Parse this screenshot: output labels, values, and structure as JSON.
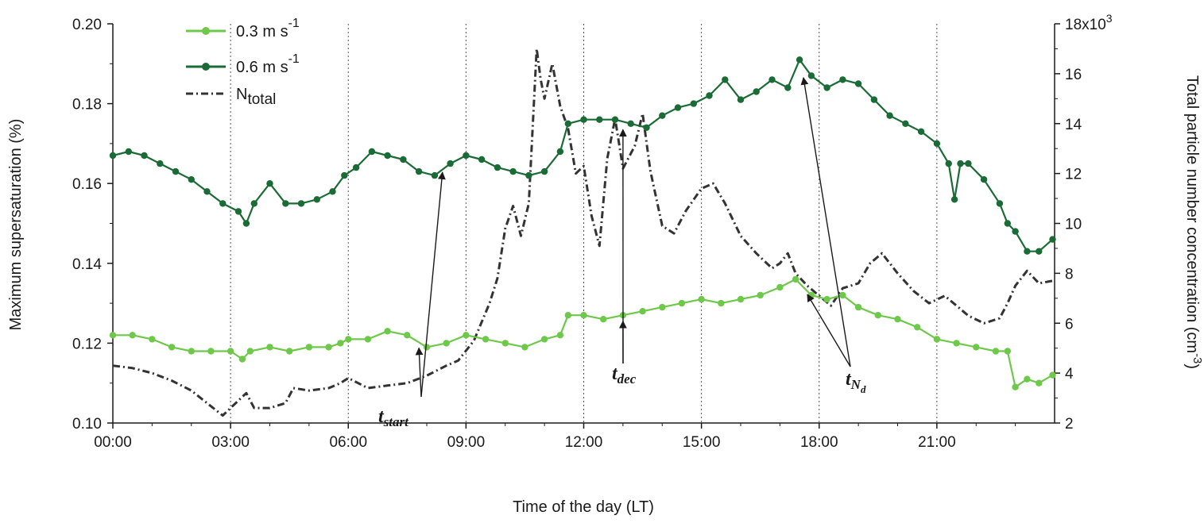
{
  "chart_data": {
    "type": "line",
    "title": "",
    "xlabel": "Time of the day (LT)",
    "ylabel_left": "Maximum supersaturation (%)",
    "ylabel_right": "Total particle number concentration (cm",
    "ylabel_right_sup": "-3",
    "ylabel_right_close": ")",
    "x_unit": "hour of day (LT)",
    "xlim": [
      0,
      24
    ],
    "ylim_left": [
      0.1,
      0.2
    ],
    "ylim_right": [
      2000,
      18000
    ],
    "x_ticks": [
      0,
      3,
      6,
      9,
      12,
      15,
      18,
      21
    ],
    "x_tick_labels": [
      "00:00",
      "03:00",
      "06:00",
      "09:00",
      "12:00",
      "15:00",
      "18:00",
      "21:00"
    ],
    "y_left_ticks": [
      0.1,
      0.12,
      0.14,
      0.16,
      0.18,
      0.2
    ],
    "y_left_tick_labels": [
      "0.10",
      "0.12",
      "0.14",
      "0.16",
      "0.18",
      "0.20"
    ],
    "y_right_ticks": [
      2000,
      4000,
      6000,
      8000,
      10000,
      12000,
      14000,
      16000,
      18000
    ],
    "y_right_tick_labels": [
      "2",
      "4",
      "6",
      "8",
      "10",
      "12",
      "14",
      "16",
      "18x10"
    ],
    "y_right_top_sup": "3",
    "grid": "vertical dotted lines at each 3-hour tick",
    "legend_placement": "top-left",
    "series": [
      {
        "name": "0.3 m s",
        "name_sup": "-1",
        "axis": "left",
        "color": "#6ec84a",
        "style": "line with circle markers",
        "x": [
          0.0,
          0.5,
          1.0,
          1.5,
          2.0,
          2.5,
          3.0,
          3.3,
          3.5,
          4.0,
          4.5,
          5.0,
          5.5,
          5.8,
          6.0,
          6.5,
          7.0,
          7.5,
          8.0,
          8.5,
          9.0,
          9.5,
          10.0,
          10.5,
          11.0,
          11.4,
          11.6,
          12.0,
          12.5,
          13.0,
          13.5,
          14.0,
          14.5,
          15.0,
          15.5,
          16.0,
          16.5,
          17.0,
          17.4,
          17.8,
          18.2,
          18.6,
          19.0,
          19.5,
          20.0,
          20.5,
          21.0,
          21.5,
          22.0,
          22.5,
          22.8,
          23.0,
          23.3,
          23.6,
          23.95
        ],
        "y": [
          0.122,
          0.122,
          0.121,
          0.119,
          0.118,
          0.118,
          0.118,
          0.116,
          0.118,
          0.119,
          0.118,
          0.119,
          0.119,
          0.12,
          0.121,
          0.121,
          0.123,
          0.122,
          0.119,
          0.12,
          0.122,
          0.121,
          0.12,
          0.119,
          0.121,
          0.122,
          0.127,
          0.127,
          0.126,
          0.127,
          0.128,
          0.129,
          0.13,
          0.131,
          0.13,
          0.131,
          0.132,
          0.134,
          0.136,
          0.132,
          0.131,
          0.132,
          0.129,
          0.127,
          0.126,
          0.124,
          0.121,
          0.12,
          0.119,
          0.118,
          0.118,
          0.109,
          0.111,
          0.11,
          0.112
        ]
      },
      {
        "name": "0.6 m s",
        "name_sup": "-1",
        "axis": "left",
        "color": "#1a6b35",
        "style": "line with circle markers",
        "x": [
          0.0,
          0.4,
          0.8,
          1.2,
          1.6,
          2.0,
          2.4,
          2.8,
          3.2,
          3.4,
          3.6,
          4.0,
          4.4,
          4.8,
          5.2,
          5.6,
          5.9,
          6.2,
          6.6,
          7.0,
          7.4,
          7.8,
          8.2,
          8.6,
          9.0,
          9.4,
          9.8,
          10.2,
          10.6,
          11.0,
          11.4,
          11.6,
          12.0,
          12.4,
          12.8,
          13.2,
          13.6,
          14.0,
          14.4,
          14.8,
          15.2,
          15.6,
          16.0,
          16.4,
          16.8,
          17.2,
          17.5,
          17.8,
          18.2,
          18.6,
          19.0,
          19.4,
          19.8,
          20.2,
          20.6,
          21.0,
          21.3,
          21.45,
          21.6,
          21.8,
          22.2,
          22.6,
          22.8,
          23.0,
          23.3,
          23.6,
          23.95
        ],
        "y": [
          0.167,
          0.168,
          0.167,
          0.165,
          0.163,
          0.161,
          0.158,
          0.155,
          0.153,
          0.15,
          0.155,
          0.16,
          0.155,
          0.155,
          0.156,
          0.158,
          0.162,
          0.164,
          0.168,
          0.167,
          0.166,
          0.163,
          0.162,
          0.165,
          0.167,
          0.166,
          0.164,
          0.163,
          0.162,
          0.163,
          0.168,
          0.175,
          0.176,
          0.176,
          0.176,
          0.175,
          0.174,
          0.177,
          0.179,
          0.18,
          0.182,
          0.186,
          0.181,
          0.183,
          0.186,
          0.184,
          0.191,
          0.187,
          0.184,
          0.186,
          0.185,
          0.181,
          0.177,
          0.175,
          0.173,
          0.17,
          0.165,
          0.156,
          0.165,
          0.165,
          0.161,
          0.155,
          0.15,
          0.148,
          0.143,
          0.143,
          0.146
        ]
      },
      {
        "name": "N",
        "name_sub": "total",
        "axis": "right",
        "color": "#333333",
        "style": "dash-dot line",
        "x": [
          0.0,
          0.5,
          1.0,
          1.5,
          2.0,
          2.4,
          2.8,
          3.0,
          3.4,
          3.6,
          4.0,
          4.4,
          4.6,
          5.0,
          5.5,
          5.8,
          6.0,
          6.5,
          7.0,
          7.5,
          8.0,
          8.5,
          8.8,
          9.2,
          9.6,
          9.8,
          10.0,
          10.2,
          10.4,
          10.6,
          10.8,
          10.9,
          11.0,
          11.2,
          11.4,
          11.6,
          11.8,
          12.0,
          12.2,
          12.4,
          12.6,
          12.8,
          13.0,
          13.3,
          13.5,
          13.7,
          14.0,
          14.3,
          14.6,
          15.0,
          15.3,
          15.6,
          16.0,
          16.4,
          16.8,
          17.0,
          17.2,
          17.4,
          17.7,
          18.0,
          18.3,
          18.6,
          19.0,
          19.3,
          19.6,
          20.0,
          20.4,
          20.8,
          21.2,
          21.5,
          21.8,
          22.2,
          22.6,
          22.8,
          23.0,
          23.3,
          23.6,
          23.95
        ],
        "y": [
          4300,
          4200,
          4000,
          3700,
          3300,
          2800,
          2300,
          2600,
          3200,
          2600,
          2600,
          2800,
          3400,
          3300,
          3400,
          3600,
          3800,
          3400,
          3500,
          3600,
          3900,
          4300,
          4500,
          5300,
          6800,
          7800,
          9800,
          10700,
          9500,
          10800,
          17000,
          15800,
          15000,
          16400,
          14700,
          13800,
          12000,
          12300,
          10300,
          9100,
          12600,
          14200,
          12200,
          13100,
          14400,
          12100,
          9900,
          9600,
          10500,
          11400,
          11600,
          10800,
          9500,
          8800,
          8200,
          8400,
          8800,
          8000,
          7500,
          7100,
          6700,
          7400,
          7600,
          8400,
          8800,
          8000,
          7300,
          6800,
          7100,
          6700,
          6300,
          6000,
          6200,
          6800,
          7500,
          8100,
          7600,
          7700
        ]
      }
    ],
    "annotations": [
      {
        "label": "t",
        "sub": "start",
        "arrow_to": [
          [
            7.8,
            0.1188
          ],
          [
            8.4,
            0.1628
          ]
        ]
      },
      {
        "label": "t",
        "sub": "dec",
        "arrow_to": [
          [
            13.0,
            0.1255
          ],
          [
            13.0,
            0.1735
          ]
        ]
      },
      {
        "label": "t",
        "sub": "N",
        "subsub": "d",
        "arrow_to": [
          [
            17.7,
            0.1322
          ],
          [
            17.6,
            0.1865
          ]
        ]
      }
    ]
  }
}
